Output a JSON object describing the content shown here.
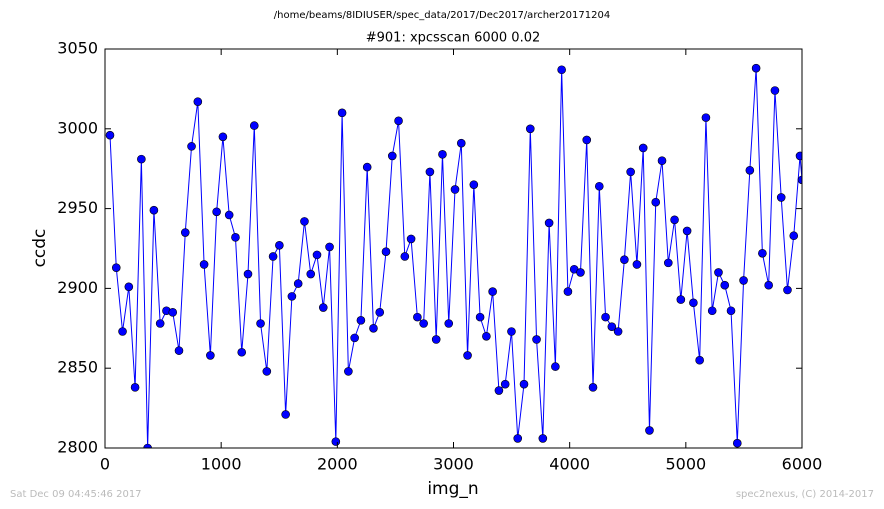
{
  "chart_data": {
    "type": "line",
    "suptitle": "/home/beams/8IDIUSER/spec_data/2017/Dec2017/archer20171204",
    "title": "#901: xpcsscan 6000 0.02",
    "xlabel": "img_n",
    "ylabel": "ccdc",
    "footer_left": "Sat Dec 09 04:45:46 2017",
    "footer_right": "spec2nexus, (C) 2014-2017",
    "color": "#0000ff",
    "x": [
      43,
      97,
      151,
      205,
      259,
      313,
      367,
      421,
      475,
      529,
      583,
      637,
      691,
      745,
      799,
      853,
      907,
      961,
      1015,
      1069,
      1123,
      1177,
      1231,
      1285,
      1339,
      1393,
      1447,
      1501,
      1555,
      1609,
      1663,
      1717,
      1771,
      1825,
      1879,
      1933,
      1987,
      2041,
      2095,
      2149,
      2203,
      2257,
      2311,
      2365,
      2419,
      2473,
      2527,
      2581,
      2635,
      2689,
      2743,
      2797,
      2851,
      2905,
      2959,
      3013,
      3067,
      3121,
      3175,
      3229,
      3283,
      3337,
      3391,
      3445,
      3499,
      3553,
      3607,
      3661,
      3715,
      3769,
      3823,
      3877,
      3931,
      3985,
      4039,
      4093,
      4147,
      4201,
      4255,
      4309,
      4363,
      4417,
      4471,
      4525,
      4579,
      4633,
      4687,
      4741,
      4795,
      4849,
      4903,
      4957,
      5011,
      5065,
      5119,
      5173,
      5227,
      5281,
      5335,
      5389,
      5443,
      5497,
      5551,
      5605,
      5659,
      5713,
      5767,
      5821,
      5875,
      5929,
      5983,
      6000
    ],
    "values": [
      2996,
      2913,
      2873,
      2901,
      2838,
      2981,
      2800,
      2949,
      2878,
      2886,
      2885,
      2861,
      2935,
      2989,
      3017,
      2915,
      2858,
      2948,
      2995,
      2946,
      2932,
      2860,
      2909,
      3002,
      2878,
      2848,
      2920,
      2927,
      2821,
      2895,
      2903,
      2942,
      2909,
      2921,
      2888,
      2926,
      2804,
      3010,
      2848,
      2869,
      2880,
      2976,
      2875,
      2885,
      2923,
      2983,
      3005,
      2920,
      2931,
      2882,
      2878,
      2973,
      2868,
      2984,
      2878,
      2962,
      2991,
      2858,
      2965,
      2882,
      2870,
      2898,
      2836,
      2840,
      2873,
      2806,
      2840,
      3000,
      2868,
      2806,
      2941,
      2851,
      3037,
      2898,
      2912,
      2910,
      2993,
      2838,
      2964,
      2882,
      2876,
      2873,
      2918,
      2973,
      2915,
      2988,
      2811,
      2954,
      2980,
      2916,
      2943,
      2893,
      2936,
      2891,
      2855,
      3007,
      2886,
      2910,
      2902,
      2886,
      2803,
      2905,
      2974,
      3038,
      2922,
      2902,
      3024,
      2957,
      2899,
      2933,
      2983,
      2968
    ],
    "xlim": [
      0,
      6000
    ],
    "xticks": [
      0,
      1000,
      2000,
      3000,
      4000,
      5000,
      6000
    ],
    "ylim": [
      2800,
      3050
    ],
    "yticks": [
      2800,
      2850,
      2900,
      2950,
      3000,
      3050
    ]
  }
}
